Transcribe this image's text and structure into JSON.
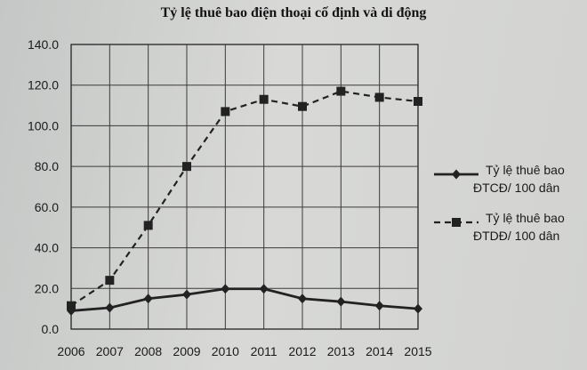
{
  "chart_data": {
    "type": "line",
    "title": "Tỷ lệ thuê bao điện thoại cố định và di động",
    "xlabel": "",
    "ylabel": "",
    "categories": [
      "2006",
      "2007",
      "2008",
      "2009",
      "2010",
      "2011",
      "2012",
      "2013",
      "2014",
      "2015"
    ],
    "ylim": [
      0,
      140
    ],
    "yticks": [
      "0.0",
      "20.0",
      "40.0",
      "60.0",
      "80.0",
      "100.0",
      "120.0",
      "140.0"
    ],
    "grid": true,
    "legend_position": "right",
    "series": [
      {
        "name_line1": "Tỷ lệ thuê bao",
        "name_line2": "ĐTCĐ/ 100 dân",
        "style": "solid",
        "marker": "diamond",
        "values": [
          9,
          10.5,
          15,
          17,
          19.8,
          19.8,
          15,
          13.5,
          11.5,
          10
        ]
      },
      {
        "name_line1": "Tỷ lệ thuê bao",
        "name_line2": "ĐTDĐ/ 100 dân",
        "style": "dashed",
        "marker": "square",
        "values": [
          11.5,
          24,
          51,
          80,
          107,
          113,
          109.5,
          117,
          114,
          112
        ]
      }
    ]
  }
}
